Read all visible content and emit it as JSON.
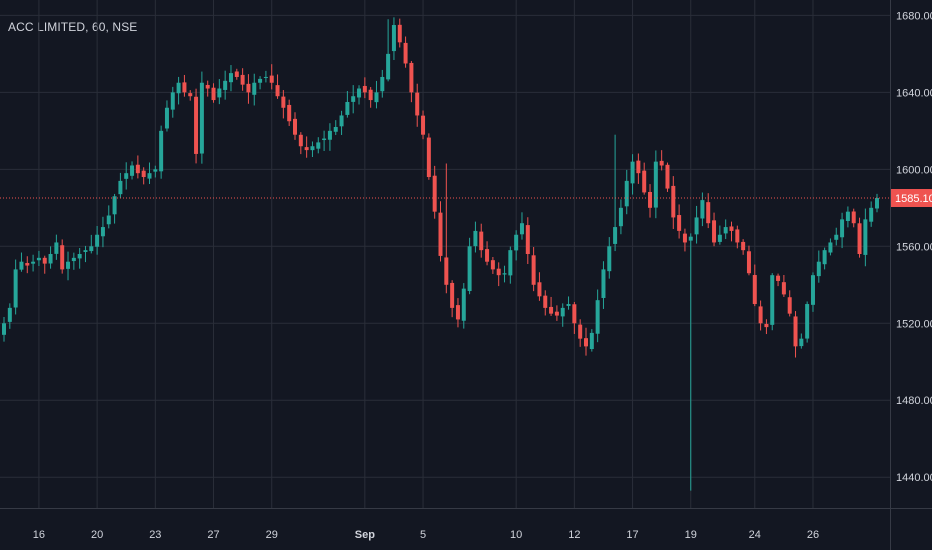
{
  "symbol": {
    "name": "ACC LIMITED",
    "interval": "60",
    "exchange": "NSE",
    "sep1": ", ",
    "sep2": ", "
  },
  "colors": {
    "background": "#131722",
    "grid": "#2a2e39",
    "up": "#26a69a",
    "down": "#ef5350",
    "text": "#d1d4dc",
    "price_line": "#ef5350"
  },
  "chart_data": {
    "type": "candlestick",
    "title": "",
    "xlabel": "",
    "ylabel": "",
    "ylim": [
      1424,
      1688
    ],
    "y_ticks": [
      "1440.00",
      "1480.00",
      "1520.00",
      "1560.00",
      "1600.00",
      "1640.00",
      "1680.00"
    ],
    "y_tick_values": [
      1440,
      1480,
      1520,
      1560,
      1600,
      1640,
      1680
    ],
    "x_ticks": [
      "16",
      "20",
      "23",
      "27",
      "29",
      "Sep",
      "5",
      "10",
      "12",
      "17",
      "19",
      "24",
      "26"
    ],
    "x_tick_bar_index": [
      6,
      16,
      26,
      36,
      46,
      62,
      72,
      88,
      98,
      108,
      118,
      129,
      139
    ],
    "last_price": 1585.1,
    "last_price_label": "1585.10",
    "close_series": [
      1520,
      1528,
      1548,
      1552,
      1550,
      1552,
      1554,
      1551,
      1556,
      1562,
      1548,
      1552,
      1554,
      1556,
      1558,
      1560,
      1566,
      1570,
      1576,
      1586,
      1594,
      1598,
      1602,
      1598,
      1596,
      1598,
      1600,
      1620,
      1632,
      1640,
      1645,
      1640,
      1638,
      1608,
      1645,
      1642,
      1636,
      1642,
      1646,
      1650,
      1648,
      1644,
      1640,
      1645,
      1647,
      1648,
      1645,
      1638,
      1632,
      1625,
      1618,
      1612,
      1610,
      1612,
      1614,
      1616,
      1620,
      1622,
      1628,
      1635,
      1638,
      1642,
      1640,
      1636,
      1640,
      1648,
      1660,
      1675,
      1666,
      1655,
      1640,
      1628,
      1618,
      1596,
      1578,
      1555,
      1540,
      1528,
      1522,
      1538,
      1560,
      1568,
      1558,
      1552,
      1548,
      1545,
      1546,
      1558,
      1566,
      1572,
      1556,
      1540,
      1534,
      1528,
      1525,
      1524,
      1528,
      1530,
      1520,
      1512,
      1508,
      1515,
      1532,
      1548,
      1560,
      1570,
      1580,
      1594,
      1604,
      1598,
      1588,
      1580,
      1604,
      1602,
      1590,
      1575,
      1568,
      1562,
      1565,
      1575,
      1584,
      1572,
      1562,
      1566,
      1570,
      1568,
      1562,
      1558,
      1546,
      1530,
      1520,
      1518,
      1545,
      1542,
      1535,
      1525,
      1508,
      1512,
      1530,
      1545,
      1552,
      1558,
      1562,
      1566,
      1574,
      1578,
      1572,
      1556,
      1574,
      1580,
      1585.1
    ],
    "wick_extremes": [
      {
        "bar_index": 118,
        "low": 1433
      },
      {
        "bar_index": 66,
        "high": 1678
      },
      {
        "bar_index": 105,
        "high": 1618
      },
      {
        "bar_index": 76,
        "high": 1603
      }
    ]
  }
}
